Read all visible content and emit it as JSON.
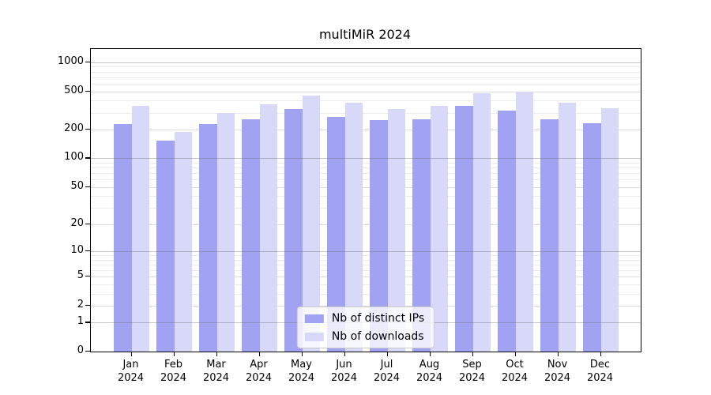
{
  "chart_data": {
    "type": "bar",
    "title": "multiMiR 2024",
    "categories": [
      "Jan",
      "Feb",
      "Mar",
      "Apr",
      "May",
      "Jun",
      "Jul",
      "Aug",
      "Sep",
      "Oct",
      "Nov",
      "Dec"
    ],
    "category_year": "2024",
    "series": [
      {
        "name": "Nb of distinct IPs",
        "color": "#a2a2f2",
        "values": [
          230,
          152,
          230,
          255,
          330,
          272,
          250,
          255,
          355,
          318,
          258,
          232
        ]
      },
      {
        "name": "Nb of downloads",
        "color": "#d8d8f8",
        "values": [
          355,
          190,
          295,
          365,
          450,
          378,
          326,
          355,
          480,
          495,
          380,
          333
        ]
      }
    ],
    "yscale": "log1p",
    "ylim": [
      0,
      1375
    ],
    "yticks": [
      0,
      1,
      2,
      5,
      10,
      20,
      50,
      100,
      200,
      500,
      1000
    ],
    "grid": true,
    "legend_position": "lower center inside plot",
    "style": {
      "grid_major_color": "#6e6e6e",
      "grid_minor_color": "#ececec",
      "grid_labeled_color": "#dcdcdc",
      "axis_color": "#000000",
      "text_color": "#000000"
    }
  }
}
